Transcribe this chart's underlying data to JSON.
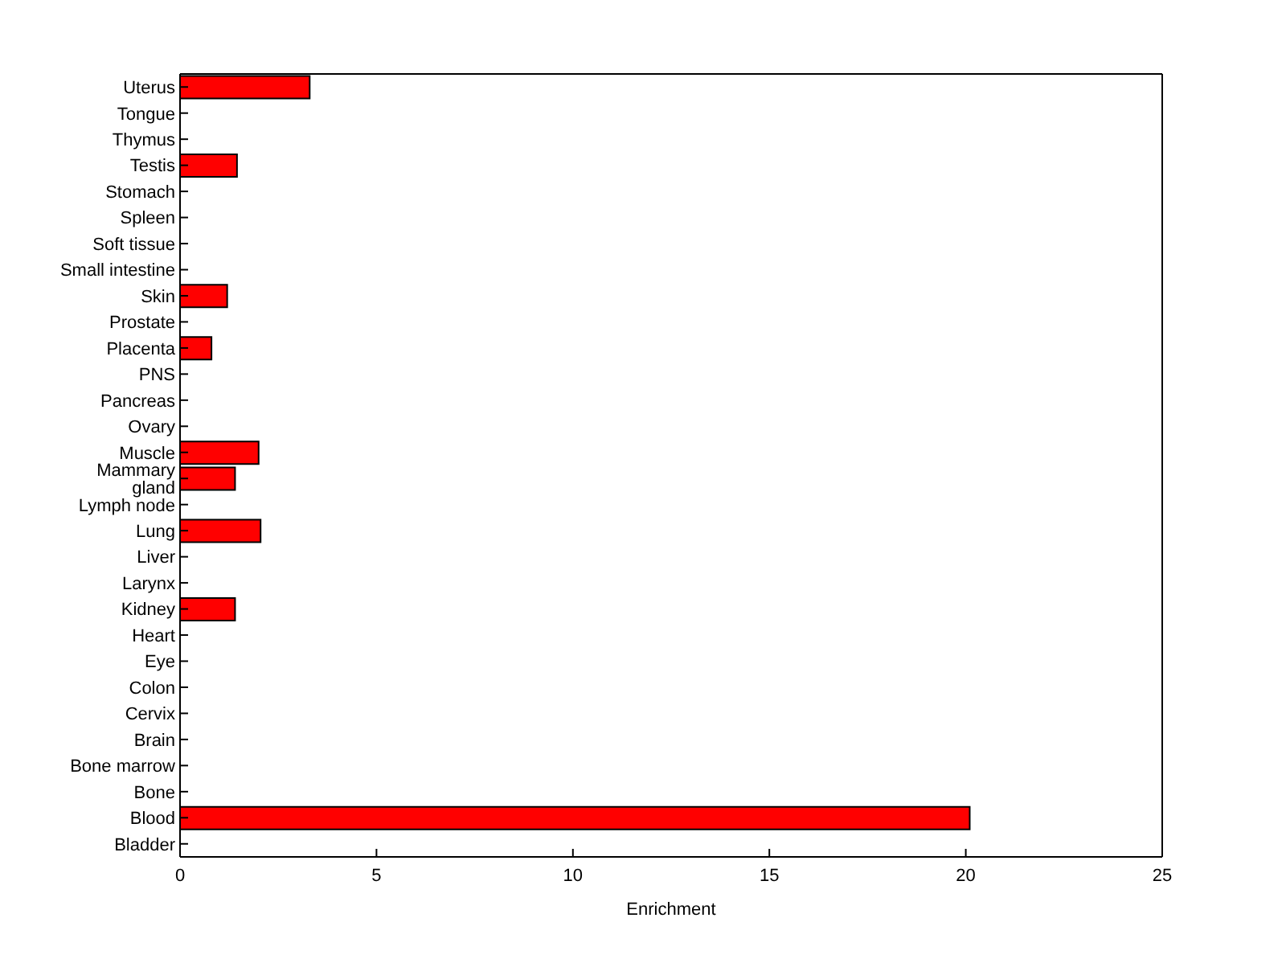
{
  "chart_data": {
    "type": "bar",
    "orientation": "horizontal",
    "xlabel": "Enrichment",
    "categories": [
      "Uterus",
      "Tongue",
      "Thymus",
      "Testis",
      "Stomach",
      "Spleen",
      "Soft tissue",
      "Small intestine",
      "Skin",
      "Prostate",
      "Placenta",
      "PNS",
      "Pancreas",
      "Ovary",
      "Muscle",
      "Mammary gland",
      "Lymph node",
      "Lung",
      "Liver",
      "Larynx",
      "Kidney",
      "Heart",
      "Eye",
      "Colon",
      "Cervix",
      "Brain",
      "Bone marrow",
      "Bone",
      "Blood",
      "Bladder"
    ],
    "values": [
      3.3,
      0,
      0,
      1.45,
      0,
      0,
      0,
      0,
      1.2,
      0,
      0.8,
      0,
      0,
      0,
      2.0,
      1.4,
      0,
      2.05,
      0,
      0,
      1.4,
      0,
      0,
      0,
      0,
      0,
      0,
      0,
      20.1,
      0
    ],
    "color": "#ff0000",
    "xlim": [
      0,
      25
    ],
    "xticks": [
      0,
      5,
      10,
      15,
      20,
      25
    ],
    "grid": false
  }
}
